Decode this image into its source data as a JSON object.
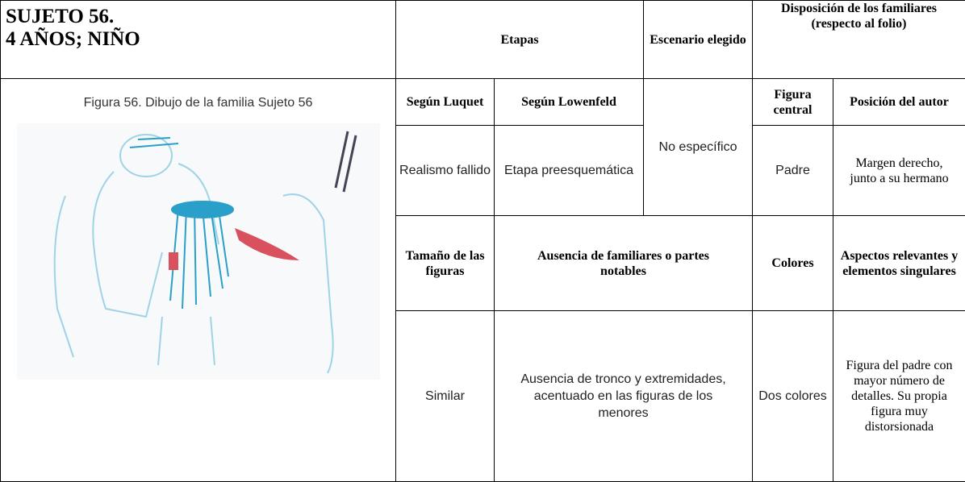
{
  "header": {
    "title": [
      "SUJETO 56.",
      "4 AÑOS; NIÑO"
    ],
    "etapas": "Etapas",
    "escenario": "Escenario elegido",
    "disposicion": "Disposición de los familiares (respecto al folio)"
  },
  "figure": {
    "caption": "Figura 56. Dibujo de la familia Sujeto 56"
  },
  "table": {
    "subheaders": [
      "Según Luquet",
      "Según Lowenfeld",
      "Figura central",
      "Posición del autor"
    ],
    "row1": [
      "Realismo fallido",
      "Etapa preesquemática",
      "No específico",
      "Padre",
      "Margen derecho, junto a su hermano"
    ],
    "subheaders2": [
      "Tamaño de las figuras",
      "Ausencia de familiares o partes notables",
      "Colores",
      "Aspectos relevantes y elementos singulares"
    ],
    "row2": [
      "Similar",
      "Ausencia de tronco y extremidades, acentuado en las figuras de los menores",
      "Dos colores",
      "Figura del padre con mayor número de detalles. Su propia figura muy distorsionada"
    ]
  }
}
